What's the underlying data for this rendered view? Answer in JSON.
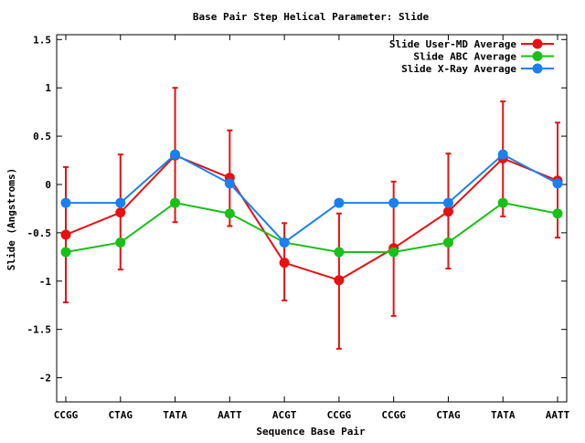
{
  "chart_data": {
    "type": "line",
    "title": "Base Pair Step Helical Parameter: Slide",
    "xlabel": "Sequence Base Pair",
    "ylabel": "Slide (Angstroms)",
    "categories": [
      "CCGG",
      "CTAG",
      "TATA",
      "AATT",
      "ACGT",
      "CCGG",
      "CCGG",
      "CTAG",
      "TATA",
      "AATT"
    ],
    "ylim": [
      -2.25,
      1.55
    ],
    "yticks": [
      -2,
      -1.5,
      -1,
      -0.5,
      0,
      0.5,
      1,
      1.5
    ],
    "ytick_labels": [
      "-2",
      "-1.5",
      "-1",
      "-0.5",
      "0",
      "0.5",
      "1",
      "1.5"
    ],
    "grid": false,
    "legend_position": "top-right",
    "series": [
      {
        "name": "Slide User-MD Average",
        "color": "#e81010",
        "values": [
          -0.52,
          -0.29,
          0.3,
          0.07,
          -0.81,
          -0.99,
          -0.66,
          -0.28,
          0.27,
          0.04
        ],
        "error_low": [
          -1.22,
          -0.88,
          -0.39,
          -0.43,
          -1.2,
          -1.7,
          -1.36,
          -0.87,
          -0.33,
          -0.55
        ],
        "error_high": [
          0.18,
          0.31,
          1.0,
          0.56,
          -0.4,
          -0.3,
          0.03,
          0.32,
          0.86,
          0.64
        ]
      },
      {
        "name": "Slide ABC Average",
        "color": "#18c018",
        "values": [
          -0.7,
          -0.6,
          -0.19,
          -0.3,
          -0.6,
          -0.7,
          -0.7,
          -0.6,
          -0.19,
          -0.3
        ]
      },
      {
        "name": "Slide X-Ray Average",
        "color": "#1880f0",
        "values": [
          -0.19,
          -0.19,
          0.31,
          0.01,
          -0.6,
          -0.19,
          -0.19,
          -0.19,
          0.31,
          0.01
        ]
      }
    ]
  }
}
